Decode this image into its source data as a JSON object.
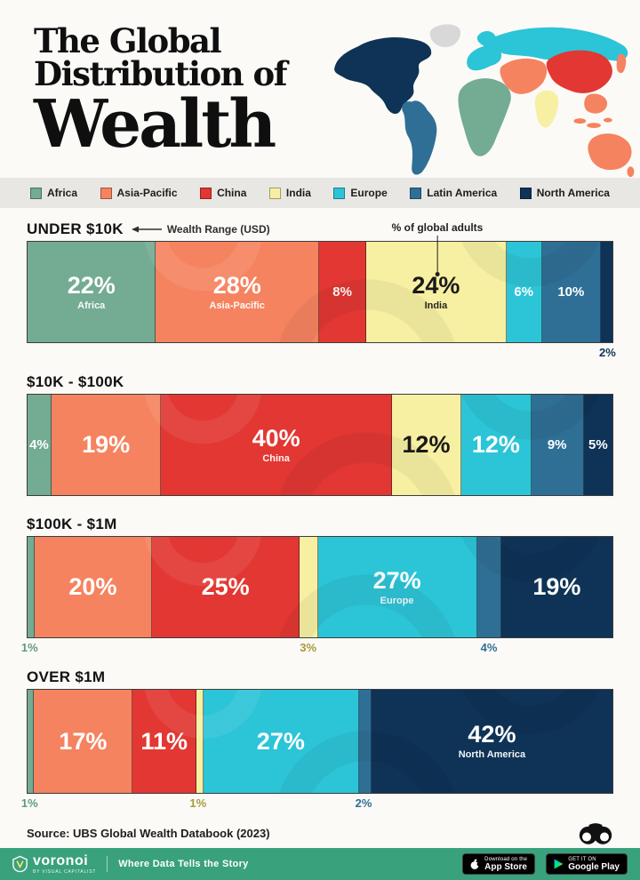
{
  "header": {
    "title_lines": [
      "The Global",
      "Distribution of",
      "Wealth"
    ]
  },
  "legend": {
    "items": [
      {
        "label": "Africa",
        "color": "#73AB93"
      },
      {
        "label": "Asia-Pacific",
        "color": "#F5835F"
      },
      {
        "label": "China",
        "color": "#E23732"
      },
      {
        "label": "India",
        "color": "#F7F0A2"
      },
      {
        "label": "Europe",
        "color": "#2CC4D7"
      },
      {
        "label": "Latin America",
        "color": "#2F6F96"
      },
      {
        "label": "North America",
        "color": "#0E3356"
      }
    ]
  },
  "annotations": {
    "wealth_range": "Wealth Range (USD)",
    "global_adults": "% of global adults"
  },
  "chart_data": {
    "type": "bar",
    "subtype": "horizontal-stacked-100pct",
    "unit": "% of global adults",
    "categories": [
      "Africa",
      "Asia-Pacific",
      "China",
      "India",
      "Europe",
      "Latin America",
      "North America"
    ],
    "palette": {
      "Africa": "#73AB93",
      "Asia-Pacific": "#F5835F",
      "China": "#E23732",
      "India": "#F7F0A2",
      "Europe": "#2CC4D7",
      "Latin America": "#2F6F96",
      "North America": "#0E3356"
    },
    "below_label_colors": {
      "Africa": "#5E9B81",
      "India": "#A79A38",
      "Latin America": "#2F6F96",
      "North America": "#0E3356"
    },
    "bars": [
      {
        "range": "UNDER $10K",
        "segments": [
          {
            "region": "Africa",
            "value": 22,
            "display": "22%",
            "placement": "inside",
            "size": "large",
            "sublabel": "Africa"
          },
          {
            "region": "Asia-Pacific",
            "value": 28,
            "display": "28%",
            "placement": "inside",
            "size": "large",
            "sublabel": "Asia-Pacific"
          },
          {
            "region": "China",
            "value": 8,
            "display": "8%",
            "placement": "inside",
            "size": "small"
          },
          {
            "region": "India",
            "value": 24,
            "display": "24%",
            "placement": "inside",
            "size": "large",
            "sublabel": "India",
            "dark_text": true
          },
          {
            "region": "Europe",
            "value": 6,
            "display": "6%",
            "placement": "inside",
            "size": "small"
          },
          {
            "region": "Latin America",
            "value": 10,
            "display": "10%",
            "placement": "inside",
            "size": "small"
          },
          {
            "region": "North America",
            "value": 2,
            "display": "2%",
            "placement": "below"
          }
        ]
      },
      {
        "range": "$10K - $100K",
        "segments": [
          {
            "region": "Africa",
            "value": 4,
            "display": "4%",
            "placement": "inside",
            "size": "small"
          },
          {
            "region": "Asia-Pacific",
            "value": 19,
            "display": "19%",
            "placement": "inside",
            "size": "large"
          },
          {
            "region": "China",
            "value": 40,
            "display": "40%",
            "placement": "inside",
            "size": "large",
            "sublabel": "China"
          },
          {
            "region": "India",
            "value": 12,
            "display": "12%",
            "placement": "inside",
            "size": "large",
            "dark_text": true
          },
          {
            "region": "Europe",
            "value": 12,
            "display": "12%",
            "placement": "inside",
            "size": "large"
          },
          {
            "region": "Latin America",
            "value": 9,
            "display": "9%",
            "placement": "inside",
            "size": "small"
          },
          {
            "region": "North America",
            "value": 5,
            "display": "5%",
            "placement": "inside",
            "size": "small"
          }
        ]
      },
      {
        "range": "$100K - $1M",
        "segments": [
          {
            "region": "Africa",
            "value": 1,
            "display": "1%",
            "placement": "below"
          },
          {
            "region": "Asia-Pacific",
            "value": 20,
            "display": "20%",
            "placement": "inside",
            "size": "large"
          },
          {
            "region": "China",
            "value": 25,
            "display": "25%",
            "placement": "inside",
            "size": "large"
          },
          {
            "region": "India",
            "value": 3,
            "display": "3%",
            "placement": "below"
          },
          {
            "region": "Europe",
            "value": 27,
            "display": "27%",
            "placement": "inside",
            "size": "large",
            "sublabel": "Europe"
          },
          {
            "region": "Latin America",
            "value": 4,
            "display": "4%",
            "placement": "below"
          },
          {
            "region": "North America",
            "value": 19,
            "display": "19%",
            "placement": "inside",
            "size": "large"
          }
        ]
      },
      {
        "range": "OVER $1M",
        "segments": [
          {
            "region": "Africa",
            "value": 1,
            "display": "1%",
            "placement": "below"
          },
          {
            "region": "Asia-Pacific",
            "value": 17,
            "display": "17%",
            "placement": "inside",
            "size": "large"
          },
          {
            "region": "China",
            "value": 11,
            "display": "11%",
            "placement": "inside",
            "size": "large"
          },
          {
            "region": "India",
            "value": 1,
            "display": "1%",
            "placement": "below"
          },
          {
            "region": "Europe",
            "value": 27,
            "display": "27%",
            "placement": "inside",
            "size": "large"
          },
          {
            "region": "Latin America",
            "value": 2,
            "display": "2%",
            "placement": "below"
          },
          {
            "region": "North America",
            "value": 42,
            "display": "42%",
            "placement": "inside",
            "size": "large",
            "sublabel": "North America"
          }
        ]
      }
    ]
  },
  "source": {
    "text": "Source: UBS Global Wealth Databook (2023)"
  },
  "footer": {
    "brand": "voronoi",
    "brand_sub": "BY VISUAL CAPITALIST",
    "tagline": "Where Data Tells the Story",
    "badges": [
      {
        "top": "Download on the",
        "main": "App Store"
      },
      {
        "top": "GET IT ON",
        "main": "Google Play"
      }
    ]
  }
}
